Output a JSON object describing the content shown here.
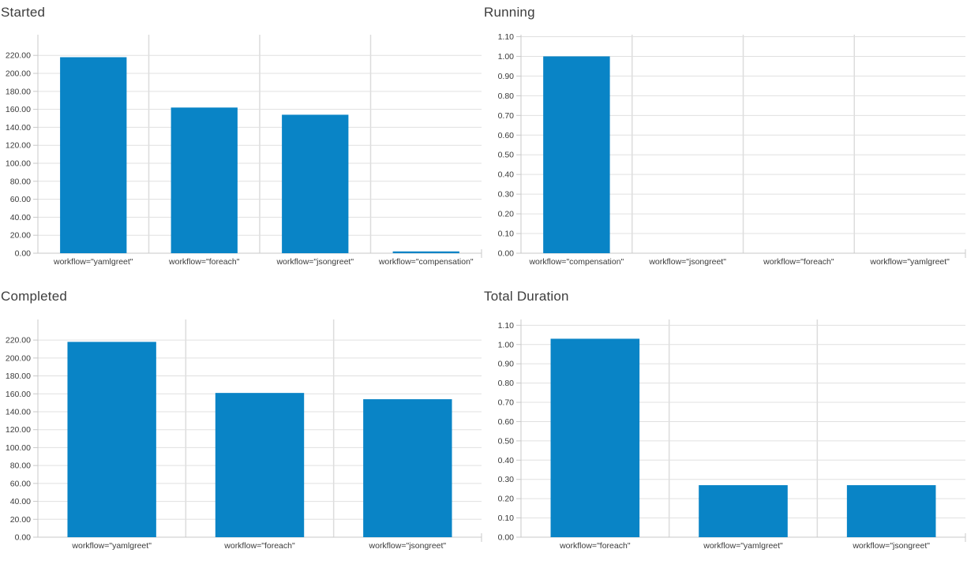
{
  "page": {
    "background": "#ffffff"
  },
  "colors": {
    "bar": "#0984c6",
    "grid_line": "#e0e0e0",
    "separator_line": "#dcdcdc",
    "axis_line": "#c9c9c9",
    "title_text": "#3d3d3d",
    "tick_text": "#3a3a3a"
  },
  "chart_data": [
    {
      "type": "bar",
      "title": "Started",
      "categories": [
        "workflow=\"yamlgreet\"",
        "workflow=\"foreach\"",
        "workflow=\"jsongreet\"",
        "workflow=\"compensation\""
      ],
      "values": [
        218,
        162,
        154,
        2
      ],
      "xlabel": "",
      "ylabel": "",
      "ylim": [
        0,
        243
      ],
      "ytick_step": 20,
      "ytick_max": 220,
      "ytick_decimals": 2,
      "grid": true,
      "legend": "none"
    },
    {
      "type": "bar",
      "title": "Running",
      "categories": [
        "workflow=\"compensation\"",
        "workflow=\"jsongreet\"",
        "workflow=\"foreach\"",
        "workflow=\"yamlgreet\""
      ],
      "values": [
        1.0,
        0,
        0,
        0
      ],
      "xlabel": "",
      "ylabel": "",
      "ylim": [
        0,
        1.11
      ],
      "ytick_step": 0.1,
      "ytick_max": 1.1,
      "ytick_decimals": 2,
      "grid": true,
      "legend": "none"
    },
    {
      "type": "bar",
      "title": "Completed",
      "categories": [
        "workflow=\"yamlgreet\"",
        "workflow=\"foreach\"",
        "workflow=\"jsongreet\""
      ],
      "values": [
        218,
        161,
        154
      ],
      "xlabel": "",
      "ylabel": "",
      "ylim": [
        0,
        243
      ],
      "ytick_step": 20,
      "ytick_max": 220,
      "ytick_decimals": 2,
      "grid": true,
      "legend": "none"
    },
    {
      "type": "bar",
      "title": "Total Duration",
      "categories": [
        "workflow=\"foreach\"",
        "workflow=\"yamlgreet\"",
        "workflow=\"jsongreet\""
      ],
      "values": [
        1.03,
        0.27,
        0.27
      ],
      "xlabel": "",
      "ylabel": "",
      "ylim": [
        0,
        1.13
      ],
      "ytick_step": 0.1,
      "ytick_max": 1.1,
      "ytick_decimals": 2,
      "grid": true,
      "legend": "none"
    }
  ]
}
